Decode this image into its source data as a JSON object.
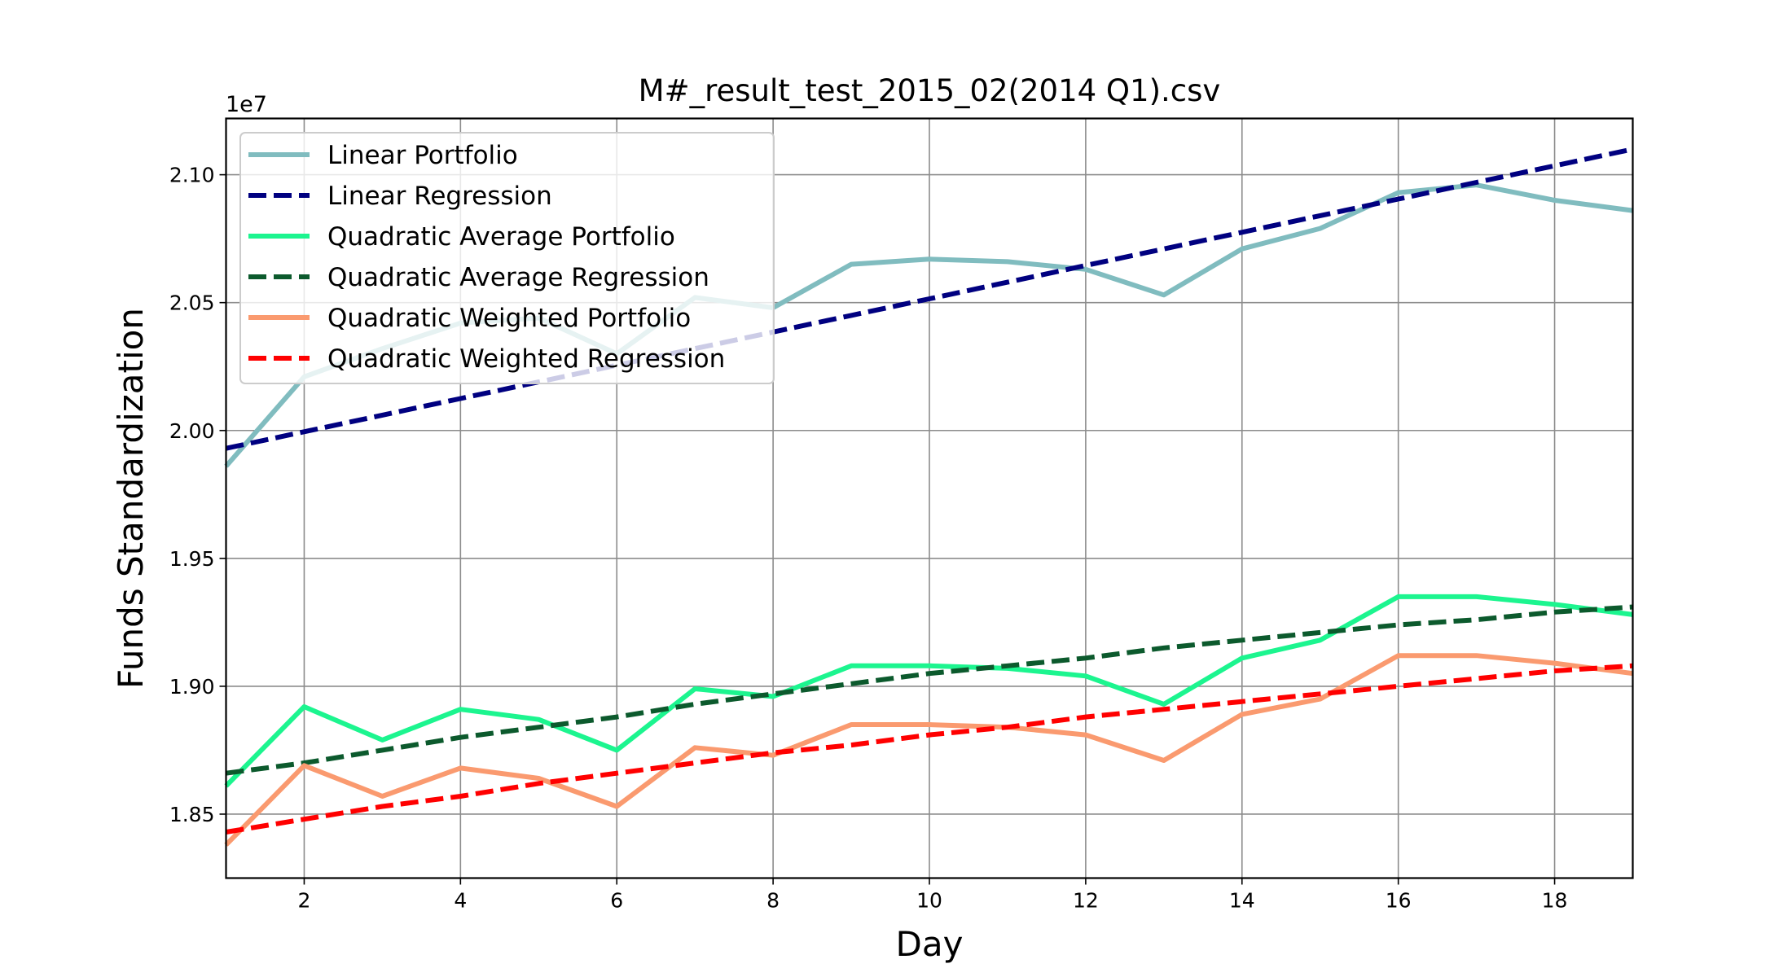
{
  "chart_data": {
    "type": "line",
    "title": "M#_result_test_2015_02(2014 Q1).csv",
    "xlabel": "Day",
    "ylabel": "Funds Standardization",
    "y_offset_label": "1e7",
    "xlim": [
      1,
      19
    ],
    "ylim": [
      18.25,
      21.22
    ],
    "x_ticks": [
      2,
      4,
      6,
      8,
      10,
      12,
      14,
      16,
      18
    ],
    "x_tick_labels": [
      "2",
      "4",
      "6",
      "8",
      "10",
      "12",
      "14",
      "16",
      "18"
    ],
    "y_ticks": [
      18.5,
      19.0,
      19.5,
      20.0,
      20.5,
      21.0
    ],
    "y_tick_labels": [
      "1.85",
      "1.90",
      "1.95",
      "2.00",
      "2.05",
      "2.10"
    ],
    "grid": true,
    "legend_position": "upper-left",
    "x": [
      1,
      2,
      3,
      4,
      5,
      6,
      7,
      8,
      9,
      10,
      11,
      12,
      13,
      14,
      15,
      16,
      17,
      18,
      19
    ],
    "series": [
      {
        "name": "Linear Portfolio",
        "color": "#80bcbf",
        "dashed": false,
        "values": [
          19.86,
          20.21,
          20.32,
          20.42,
          20.44,
          20.3,
          20.52,
          20.48,
          20.65,
          20.67,
          20.66,
          20.63,
          20.53,
          20.71,
          20.79,
          20.93,
          20.96,
          20.9,
          20.86
        ]
      },
      {
        "name": "Linear Regression",
        "color": "#000080",
        "dashed": true,
        "values": [
          19.93,
          19.995,
          20.06,
          20.125,
          20.19,
          20.255,
          20.32,
          20.385,
          20.45,
          20.515,
          20.58,
          20.645,
          20.71,
          20.775,
          20.84,
          20.905,
          20.97,
          21.035,
          21.1
        ]
      },
      {
        "name": "Quadratic Average Portfolio",
        "color": "#1cf58f",
        "dashed": false,
        "values": [
          18.61,
          18.92,
          18.79,
          18.91,
          18.87,
          18.75,
          18.99,
          18.96,
          19.08,
          19.08,
          19.07,
          19.04,
          18.93,
          19.11,
          19.18,
          19.35,
          19.35,
          19.32,
          19.28
        ]
      },
      {
        "name": "Quadratic Average Regression",
        "color": "#0c5a2d",
        "dashed": true,
        "values": [
          18.66,
          18.7,
          18.75,
          18.8,
          18.84,
          18.88,
          18.93,
          18.97,
          19.01,
          19.05,
          19.08,
          19.11,
          19.15,
          19.18,
          19.21,
          19.24,
          19.26,
          19.29,
          19.31
        ]
      },
      {
        "name": "Quadratic Weighted Portfolio",
        "color": "#fa9a6f",
        "dashed": false,
        "values": [
          18.38,
          18.69,
          18.57,
          18.68,
          18.64,
          18.53,
          18.76,
          18.73,
          18.85,
          18.85,
          18.84,
          18.81,
          18.71,
          18.89,
          18.95,
          19.12,
          19.12,
          19.09,
          19.05
        ]
      },
      {
        "name": "Quadratic Weighted Regression",
        "color": "#ff0000",
        "dashed": true,
        "values": [
          18.43,
          18.48,
          18.53,
          18.57,
          18.62,
          18.66,
          18.7,
          18.74,
          18.77,
          18.81,
          18.84,
          18.88,
          18.91,
          18.94,
          18.97,
          19.0,
          19.03,
          19.06,
          19.08
        ]
      }
    ]
  }
}
